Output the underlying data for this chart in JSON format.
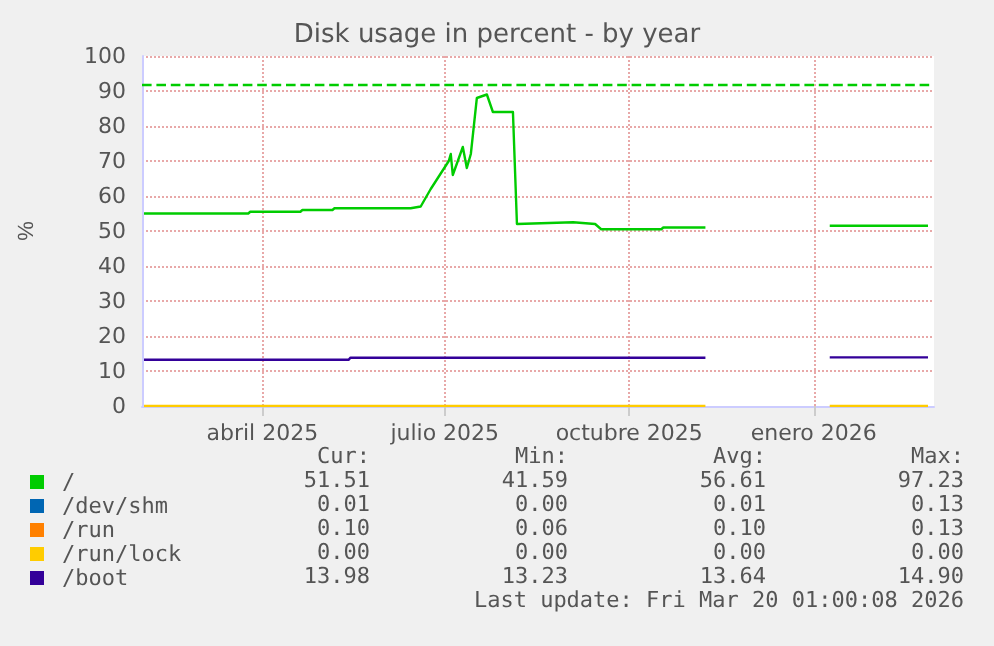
{
  "chart_data": {
    "type": "line",
    "title": "Disk usage in percent - by year",
    "ylabel": "%",
    "xlim": [
      "2025-02-14",
      "2026-03-16"
    ],
    "xticks": [
      {
        "value": "2025-04-15",
        "label": "abril 2025"
      },
      {
        "value": "2025-07-15",
        "label": "julio 2025"
      },
      {
        "value": "2025-10-15",
        "label": "octubre 2025"
      },
      {
        "value": "2026-01-15",
        "label": "enero 2026"
      }
    ],
    "ylim": [
      0,
      100
    ],
    "yticks": [
      0,
      10,
      20,
      30,
      40,
      50,
      60,
      70,
      80,
      90,
      100
    ],
    "grid": true,
    "legend": "bottom left",
    "marker": "none",
    "line_style": "solid",
    "ref_lines": [
      {
        "axis": "y",
        "value": 92,
        "color": "#00cc00",
        "line_style": "dashed"
      }
    ],
    "series": [
      {
        "name": "/",
        "color": "#00cc00",
        "x": [
          "2025-02-15",
          "2025-04-08",
          "2025-04-09",
          "2025-05-04",
          "2025-05-05",
          "2025-05-20",
          "2025-05-21",
          "2025-06-28",
          "2025-07-03",
          "2025-07-08",
          "2025-07-17",
          "2025-07-18",
          "2025-07-19",
          "2025-07-24",
          "2025-07-26",
          "2025-07-28",
          "2025-07-31",
          "2025-08-05",
          "2025-08-08",
          "2025-08-18",
          "2025-08-20",
          "2025-09-17",
          "2025-09-28",
          "2025-10-01",
          "2025-10-31",
          "2025-11-01",
          "2025-11-22",
          "2025-11-23",
          "2026-01-23",
          "2026-03-13"
        ],
        "values": [
          55,
          55,
          55.5,
          55.5,
          56,
          56,
          56.5,
          56.5,
          57,
          62,
          70,
          72,
          66,
          74,
          68,
          72,
          88,
          89,
          84,
          84,
          52,
          52.5,
          52,
          50.5,
          50.5,
          51,
          51,
          null,
          51.5,
          51.5
        ]
      },
      {
        "name": "/dev/shm",
        "color": "#0066b3"
      },
      {
        "name": "/run",
        "color": "#ff8000"
      },
      {
        "name": "/run/lock",
        "color": "#ffcc00",
        "x": [
          "2025-02-15",
          "2025-11-22",
          "2025-11-23",
          "2026-01-23",
          "2026-03-13"
        ],
        "values": [
          0,
          0,
          null,
          0,
          0
        ]
      },
      {
        "name": "/boot",
        "color": "#330099",
        "x": [
          "2025-02-15",
          "2025-05-28",
          "2025-05-29",
          "2025-11-22",
          "2025-11-23",
          "2026-01-23",
          "2026-03-13"
        ],
        "values": [
          13.2,
          13.2,
          13.8,
          13.8,
          null,
          13.9,
          13.9
        ]
      }
    ],
    "annotations": [
      "Cur:",
      "Min:",
      "Avg:",
      "Max:",
      "51.51",
      "41.59",
      "56.61",
      "97.23",
      "0.01",
      "0.00",
      "0.01",
      "0.13",
      "0.10",
      "0.06",
      "0.10",
      "0.13",
      "0.00",
      "0.00",
      "0.00",
      "0.00",
      "13.98",
      "13.23",
      "13.64",
      "14.90",
      "Last update: Fri Mar 20 01:00:08 2026"
    ]
  }
}
